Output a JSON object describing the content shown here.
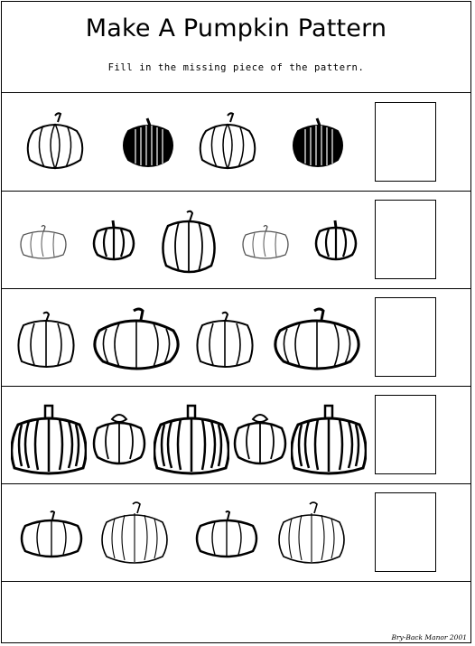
{
  "worksheet": {
    "title": "Make A Pumpkin Pattern",
    "instructions": "Fill in the missing piece of the pattern.",
    "credit": "Bry-Back Manor 2001"
  },
  "rows": [
    {
      "pattern": [
        "classic-pumpkin-icon",
        "striped-dark-pumpkin-icon",
        "classic-pumpkin-icon",
        "striped-dark-pumpkin-icon"
      ],
      "answer": ""
    },
    {
      "pattern": [
        "small-pale-pumpkin-icon",
        "small-dark-pumpkin-icon",
        "tall-ribbed-pumpkin-icon",
        "small-pale-pumpkin-icon",
        "small-dark-pumpkin-icon"
      ],
      "answer": ""
    },
    {
      "pattern": [
        "tall-ribbed-pumpkin-icon",
        "wide-flat-pumpkin-icon",
        "tall-ribbed-pumpkin-icon",
        "wide-flat-pumpkin-icon"
      ],
      "answer": ""
    },
    {
      "pattern": [
        "tall-striped-pumpkin-icon",
        "round-small-pumpkin-icon",
        "tall-striped-pumpkin-icon",
        "round-small-pumpkin-icon",
        "tall-striped-pumpkin-icon"
      ],
      "answer": ""
    },
    {
      "pattern": [
        "round-pumpkin-icon",
        "wide-ribbed-pumpkin-icon",
        "round-pumpkin-icon",
        "wide-ribbed-pumpkin-icon"
      ],
      "answer": ""
    }
  ]
}
